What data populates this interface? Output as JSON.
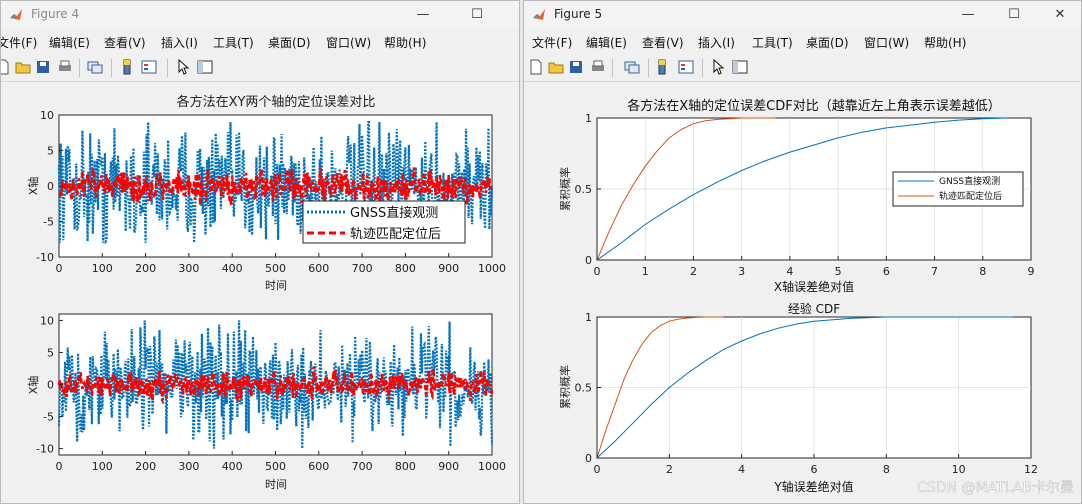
{
  "figure4": {
    "window_title": "Figure 4",
    "menu": [
      "文件(F)",
      "编辑(E)",
      "查看(V)",
      "插入(I)",
      "工具(T)",
      "桌面(D)",
      "窗口(W)",
      "帮助(H)"
    ],
    "controls": [
      "minimize-icon",
      "maximize-icon"
    ],
    "top_plot": {
      "title": "各方法在XY两个轴的定位误差对比",
      "xlabel": "时间",
      "ylabel": "X轴",
      "xlim": [
        0,
        1000
      ],
      "ylim": [
        -10,
        10
      ],
      "xticks": [
        "0",
        "100",
        "200",
        "300",
        "400",
        "500",
        "600",
        "700",
        "800",
        "900",
        "1000"
      ],
      "yticks": [
        "10",
        "5",
        "0",
        "-5",
        "-10"
      ],
      "legend": [
        "GNSS直接观测",
        "轨迹匹配定位后"
      ]
    },
    "bottom_plot": {
      "xlabel": "时间",
      "ylabel": "X轴",
      "xlim": [
        0,
        1000
      ],
      "ylim": [
        -11,
        11
      ],
      "xticks": [
        "0",
        "100",
        "200",
        "300",
        "400",
        "500",
        "600",
        "700",
        "800",
        "900",
        "1000"
      ],
      "yticks": [
        "10",
        "5",
        "0",
        "-5",
        "-10"
      ]
    }
  },
  "figure5": {
    "window_title": "Figure 5",
    "menu": [
      "文件(F)",
      "编辑(E)",
      "查看(V)",
      "插入(I)",
      "工具(T)",
      "桌面(D)",
      "窗口(W)",
      "帮助(H)"
    ],
    "controls": [
      "minimize-icon",
      "maximize-icon",
      "close-icon"
    ],
    "top_plot": {
      "title": "各方法在X轴的定位误差CDF对比（越靠近左上角表示误差越低）",
      "xlabel": "X轴误差绝对值",
      "ylabel": "累积概率",
      "xlim": [
        0,
        9
      ],
      "ylim": [
        0,
        1
      ],
      "xticks": [
        "0",
        "1",
        "2",
        "3",
        "4",
        "5",
        "6",
        "7",
        "8",
        "9"
      ],
      "yticks": [
        "1",
        "0.5",
        "0"
      ],
      "legend": [
        "GNSS直接观测",
        "轨迹匹配定位后"
      ]
    },
    "bottom_plot": {
      "title": "经验 CDF",
      "xlabel": "Y轴误差绝对值",
      "ylabel": "累积概率",
      "xlim": [
        0,
        12
      ],
      "ylim": [
        0,
        1
      ],
      "xticks": [
        "0",
        "2",
        "4",
        "6",
        "8",
        "10",
        "12"
      ],
      "yticks": [
        "1",
        "0.5",
        "0"
      ]
    }
  },
  "watermark": "CSDN @MATLAB卡尔曼",
  "colors": {
    "gnss": "#0072bd",
    "matched": "#ff0000",
    "matched_cdf": "#d95319"
  },
  "chart_data": [
    {
      "type": "line",
      "title": "各方法在XY两个轴的定位误差对比",
      "xlabel": "时间",
      "ylabel": "X轴",
      "xlim": [
        0,
        1000
      ],
      "ylim": [
        -10,
        10
      ],
      "series": [
        {
          "name": "GNSS直接观测",
          "style": "dotted",
          "spread": 6,
          "range": [
            -8,
            9
          ]
        },
        {
          "name": "轨迹匹配定位后",
          "style": "dashed",
          "spread": 1.6,
          "range": [
            -3,
            3
          ]
        }
      ],
      "legend_position": "lower-right"
    },
    {
      "type": "line",
      "xlabel": "时间",
      "ylabel": "X轴",
      "xlim": [
        0,
        1000
      ],
      "ylim": [
        -11,
        11
      ],
      "series": [
        {
          "style": "dotted",
          "spread": 6,
          "range": [
            -10,
            10
          ]
        },
        {
          "style": "dashed",
          "spread": 1.6,
          "range": [
            -3,
            3
          ]
        }
      ]
    },
    {
      "type": "line",
      "title": "各方法在X轴的定位误差CDF对比（越靠近左上角表示误差越低）",
      "xlabel": "X轴误差绝对值",
      "ylabel": "累积概率",
      "xlim": [
        0,
        9
      ],
      "ylim": [
        0,
        1
      ],
      "series": [
        {
          "name": "GNSS直接观测",
          "x": [
            0,
            0.5,
            1,
            1.5,
            2,
            2.5,
            3,
            3.5,
            4,
            4.5,
            5,
            5.5,
            6,
            6.5,
            7,
            7.5,
            8,
            8.5
          ],
          "y": [
            0,
            0.12,
            0.25,
            0.36,
            0.46,
            0.55,
            0.63,
            0.7,
            0.76,
            0.81,
            0.86,
            0.9,
            0.93,
            0.95,
            0.97,
            0.985,
            0.995,
            1
          ]
        },
        {
          "name": "轨迹匹配定位后",
          "x": [
            0,
            0.25,
            0.5,
            0.75,
            1,
            1.25,
            1.5,
            1.75,
            2,
            2.25,
            2.5,
            2.75,
            3,
            3.5,
            3.7
          ],
          "y": [
            0,
            0.2,
            0.38,
            0.53,
            0.66,
            0.77,
            0.86,
            0.92,
            0.96,
            0.98,
            0.99,
            0.995,
            1,
            1,
            1
          ]
        }
      ],
      "grid": true,
      "legend_position": "right"
    },
    {
      "type": "line",
      "title": "经验 CDF",
      "xlabel": "Y轴误差绝对值",
      "ylabel": "累积概率",
      "xlim": [
        0,
        12
      ],
      "ylim": [
        0,
        1
      ],
      "series": [
        {
          "x": [
            0,
            0.5,
            1,
            1.5,
            2,
            2.5,
            3,
            3.5,
            4,
            4.5,
            5,
            5.5,
            6,
            7,
            8,
            9,
            10,
            11,
            11.5
          ],
          "y": [
            0,
            0.12,
            0.25,
            0.38,
            0.5,
            0.6,
            0.69,
            0.77,
            0.83,
            0.88,
            0.92,
            0.95,
            0.97,
            0.99,
            1,
            1,
            1,
            1,
            1
          ]
        },
        {
          "x": [
            0,
            0.25,
            0.5,
            0.75,
            1,
            1.25,
            1.5,
            1.75,
            2,
            2.25,
            2.5,
            2.75,
            3,
            3.25,
            3.5
          ],
          "y": [
            0,
            0.2,
            0.38,
            0.56,
            0.7,
            0.81,
            0.89,
            0.94,
            0.97,
            0.985,
            0.993,
            0.997,
            1,
            1,
            1
          ]
        }
      ],
      "grid": true
    }
  ]
}
